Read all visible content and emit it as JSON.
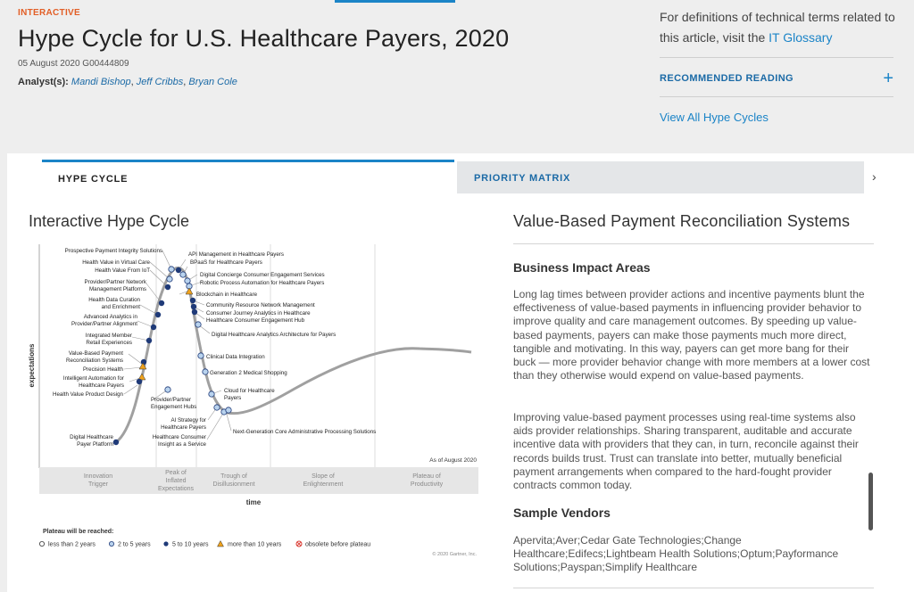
{
  "header": {
    "kicker": "INTERACTIVE",
    "title": "Hype Cycle for U.S. Healthcare Payers, 2020",
    "meta": "05 August 2020 G00444809",
    "analysts_label": "Analyst(s):",
    "analysts": [
      "Mandi Bishop",
      "Jeff Cribbs",
      "Bryan Cole"
    ]
  },
  "sidebar": {
    "glossary_text": "For definitions of technical terms related to this article, visit the",
    "glossary_link": "IT Glossary",
    "recommended_reading": "RECOMMENDED READING",
    "view_all": "View All Hype Cycles"
  },
  "tabs": [
    {
      "label": "HYPE CYCLE",
      "active": true
    },
    {
      "label": "PRIORITY MATRIX",
      "active": false
    }
  ],
  "left_panel": {
    "title": "Interactive Hype Cycle"
  },
  "chart": {
    "y_axis_label": "expectations",
    "x_axis_label": "time",
    "as_of": "As of August 2020",
    "copyright": "© 2020 Gartner, Inc.",
    "phases": [
      "Innovation Trigger",
      "Peak of Inflated Expectations",
      "Trough of Disillusionment",
      "Slope of Enlightenment",
      "Plateau of Productivity"
    ],
    "legend_title": "Plateau will be reached:",
    "legend": [
      {
        "label": "less than 2 years",
        "symbol": "white-circle"
      },
      {
        "label": "2 to 5 years",
        "symbol": "light-blue-circle"
      },
      {
        "label": "5 to 10 years",
        "symbol": "dark-blue-circle"
      },
      {
        "label": "more than 10 years",
        "symbol": "orange-triangle"
      },
      {
        "label": "obsolete before plateau",
        "symbol": "red-x-circle"
      }
    ],
    "colors": {
      "dark": "#1f3a78",
      "light": "#b9d3ee",
      "triangle": "#f0a21c",
      "curve": "#9a9a9a",
      "obsolete": "#d9342b"
    },
    "left_labels": [
      "Prospective Payment Integrity Solutions",
      "Health Value in Virtual Care",
      "Health Value From IoT",
      "Provider/Partner Network Management Platforms",
      "Health Data Curation and Enrichment",
      "Advanced Analytics in Provider/Partner Alignment",
      "Integrated Member Retail Experiences",
      "Value-Based Payment Reconciliation Systems",
      "Precision Health",
      "Intelligent Automation for Healthcare Payers",
      "Health Value Product Design",
      "Digital Healthcare Payer Platform"
    ],
    "right_labels": [
      "API Management in Healthcare Payers",
      "BPaaS for Healthcare Payers",
      "Digital Concierge Consumer Engagement Services",
      "Robotic Process Automation for Healthcare Payers",
      "Blockchain in Healthcare",
      "Community Resource Network Management",
      "Consumer Journey Analytics in Healthcare",
      "Healthcare Consumer Engagement Hub",
      "Digital Healthcare Analytics Architecture for Payers",
      "Clinical Data Integration",
      "Generation 2 Medical Shopping",
      "Cloud for Healthcare Payers",
      "Provider/Partner Engagement Hubs",
      "AI Strategy for Healthcare Payers",
      "Healthcare Consumer Insight as a Service",
      "Next-Generation Core Administrative Processing Solutions"
    ]
  },
  "right_panel": {
    "title": "Value-Based Payment Reconciliation Systems",
    "section1_heading": "Business Impact Areas",
    "para1": "Long lag times between provider actions and incentive payments blunt the effectiveness of value-based payments in influencing provider behavior to improve quality and care management outcomes. By speeding up value-based payments, payers can make those payments much more direct, tangible and motivating. In this way, payers can get more bang for their buck — more provider behavior change with more members at a lower cost than they otherwise would expend on value-based payments.",
    "para2": "Improving value-based payment processes using real-time systems also aids provider relationships. Sharing transparent, auditable and accurate incentive data with providers that they can, in turn, reconcile against their records builds trust. Trust can translate into better, mutually beneficial payment arrangements when compared to the hard-fought provider contracts common today.",
    "section2_heading": "Sample Vendors",
    "vendors": "Apervita;Aver;Cedar Gate Technologies;Change Healthcare;Edifecs;Lightbeam Health Solutions;Optum;Payformance Solutions;Payspan;Simplify Healthcare"
  }
}
